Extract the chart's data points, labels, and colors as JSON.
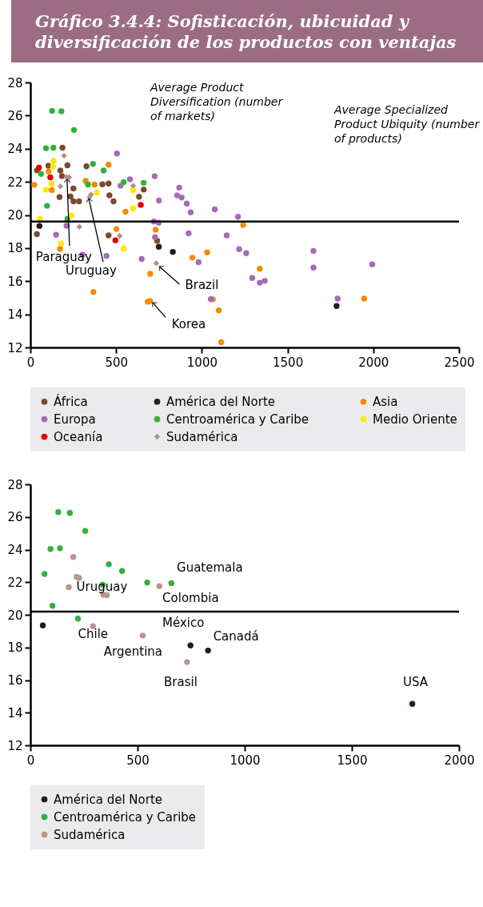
{
  "chart_data": [
    {
      "type": "scatter",
      "title": "Gráfico 3.4.4: Sofisticación, ubicuidad y diversificación de los productos con ventajas",
      "marker": "circle",
      "legend": "bottom",
      "grid": false,
      "xlim": [
        0,
        2500
      ],
      "xticks": [
        0,
        500,
        1000,
        1500,
        2000,
        2500
      ],
      "ylim": [
        12,
        28
      ],
      "yticks": [
        12,
        14,
        16,
        18,
        20,
        22,
        24,
        26,
        28
      ],
      "ref_lines": [
        {
          "axis": "y",
          "value": 19.6,
          "color": "#000000"
        }
      ],
      "annotations": [
        "Average Product Diversification (number of markets)",
        "Average Specialized Product Ubiquity (number of products)",
        {
          "text": "Paraguay",
          "x": 214,
          "y": 22.3
        },
        {
          "text": "Uruguay",
          "x": 345,
          "y": 21.23
        },
        {
          "text": "Brazil",
          "x": 734,
          "y": 17.08
        },
        {
          "text": "Korea",
          "x": 690,
          "y": 14.8
        }
      ],
      "series": [
        {
          "name": "África",
          "color": "#7b4a2e",
          "x": [
            38,
            105,
            187,
            216,
            175,
            184,
            251,
            170,
            234,
            251,
            284,
            327,
            420,
            456,
            461,
            485,
            456,
            634,
            661,
            38,
            739
          ],
          "values": [
            22.69,
            22.97,
            24.06,
            23.0,
            22.68,
            22.35,
            21.6,
            21.08,
            21.11,
            20.82,
            20.82,
            22.94,
            21.85,
            21.9,
            21.19,
            20.82,
            18.77,
            21.1,
            21.53,
            18.84,
            18.44
          ]
        },
        {
          "name": "América del Norte",
          "color": "#2b1a17",
          "x": [
            53,
            749,
            831,
            1786
          ],
          "values": [
            19.34,
            18.08,
            17.77,
            14.5
          ]
        },
        {
          "name": "Asia",
          "color": "#f28c00",
          "x": [
            23,
            106,
            125,
            173,
            322,
            374,
            456,
            502,
            555,
            368,
            699,
            684,
            698,
            731,
            945,
            1031,
            1064,
            1099,
            1113,
            1241,
            1338,
            1947
          ],
          "values": [
            21.82,
            22.63,
            21.5,
            17.95,
            22.06,
            21.84,
            23.03,
            19.15,
            20.19,
            15.35,
            16.45,
            14.76,
            14.8,
            19.11,
            17.42,
            17.74,
            14.9,
            14.24,
            12.32,
            19.39,
            16.75,
            14.95
          ]
        },
        {
          "name": "Europa",
          "color": "#a56bb8",
          "x": [
            505,
            581,
            526,
            725,
            750,
            720,
            749,
            727,
            649,
            444,
            304,
            211,
            150,
            868,
            856,
            882,
            912,
            935,
            1076,
            923,
            981,
            1145,
            1052,
            1211,
            1218,
            1259,
            1294,
            1338,
            1367,
            1651,
            1651,
            1792,
            1994
          ],
          "values": [
            23.71,
            22.15,
            21.77,
            22.34,
            20.87,
            19.6,
            19.53,
            18.66,
            17.34,
            17.52,
            17.6,
            19.35,
            18.8,
            21.65,
            21.18,
            21.05,
            20.69,
            20.16,
            20.34,
            18.89,
            17.15,
            18.77,
            14.92,
            19.89,
            17.93,
            17.69,
            16.19,
            15.91,
            16.02,
            17.83,
            16.82,
            14.95,
            17.02
          ]
        },
        {
          "name": "Centroamérica y Caribe",
          "color": "#33b03a",
          "x": [
            127,
            181,
            254,
            91,
            134,
            62,
            365,
            427,
            336,
            544,
            661,
            97,
            216
          ],
          "values": [
            26.29,
            26.26,
            25.13,
            24.03,
            24.06,
            22.48,
            23.08,
            22.68,
            21.84,
            21.98,
            21.94,
            20.55,
            19.76
          ]
        },
        {
          "name": "Medio Oriente",
          "color": "#ffe600",
          "x": [
            56,
            91,
            132,
            135,
            123,
            179,
            239,
            388,
            599,
            599,
            544
          ],
          "values": [
            19.76,
            21.53,
            22.92,
            23.27,
            21.89,
            18.27,
            19.97,
            21.35,
            21.5,
            20.4,
            17.97
          ]
        },
        {
          "name": "Oceanía",
          "color": "#e60000",
          "x": [
            50,
            116,
            496,
            644
          ],
          "values": [
            22.85,
            22.27,
            18.47,
            20.61
          ]
        },
        {
          "name": "Sudamérica",
          "color": "#b09385",
          "marker": "diamond",
          "x": [
            196,
            210,
            226,
            175,
            345,
            354,
            286,
            521,
            600,
            734
          ],
          "values": [
            23.58,
            22.3,
            22.27,
            21.73,
            21.08,
            21.23,
            19.29,
            18.73,
            21.77,
            17.08
          ]
        }
      ]
    },
    {
      "type": "scatter",
      "marker": "circle",
      "legend": "bottom",
      "grid": false,
      "xlim": [
        0,
        2000
      ],
      "xticks": [
        0,
        500,
        1000,
        1500,
        2000
      ],
      "ylim": [
        12,
        28
      ],
      "yticks": [
        12,
        14,
        16,
        18,
        20,
        22,
        24,
        26,
        28
      ],
      "ref_lines": [
        {
          "axis": "y",
          "value": 20.2,
          "color": "#000000"
        }
      ],
      "annotations": [
        {
          "text": "Guatemala",
          "x": 658,
          "y": 21.94
        },
        {
          "text": "Colombia",
          "x": 602,
          "y": 21.76
        },
        {
          "text": "Uruguay",
          "x": 345,
          "y": 21.23
        },
        {
          "text": "Chile",
          "x": 292,
          "y": 19.3
        },
        {
          "text": "México",
          "x": 747,
          "y": 18.12
        },
        {
          "text": "Argentina",
          "x": 524,
          "y": 18.73
        },
        {
          "text": "Canadá",
          "x": 829,
          "y": 17.81
        },
        {
          "text": "Brasil",
          "x": 731,
          "y": 17.1
        },
        {
          "text": "USA",
          "x": 1782,
          "y": 14.54
        }
      ],
      "series": [
        {
          "name": "América del Norte",
          "color": "#2b1a17",
          "x": [
            58,
            747,
            829,
            1782
          ],
          "values": [
            19.35,
            18.12,
            17.81,
            14.54
          ]
        },
        {
          "name": "Centroamérica y Caribe",
          "color": "#33b03a",
          "x": [
            130,
            184,
            256,
            94,
            138,
            66,
            366,
            428,
            337,
            545,
            658,
            103,
            222
          ],
          "values": [
            26.3,
            26.25,
            25.14,
            24.04,
            24.08,
            22.5,
            23.1,
            22.69,
            21.84,
            21.98,
            21.94,
            20.55,
            19.77
          ]
        },
        {
          "name": "Sudamérica",
          "color": "#b8968a",
          "x": [
            200,
            216,
            227,
            179,
            340,
            357,
            292,
            524,
            602,
            731
          ],
          "values": [
            23.55,
            22.32,
            22.26,
            21.69,
            21.23,
            21.2,
            19.3,
            18.73,
            21.76,
            17.1
          ]
        }
      ]
    }
  ]
}
